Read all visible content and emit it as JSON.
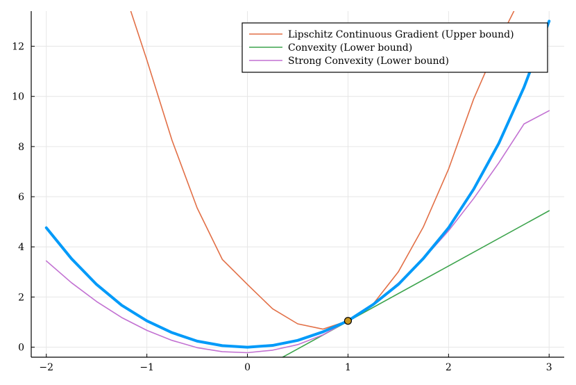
{
  "chart_data": {
    "type": "line",
    "title": "",
    "xlabel": "",
    "ylabel": "",
    "xlim": [
      -2.15,
      3.15
    ],
    "ylim": [
      -0.4,
      13.4
    ],
    "grid": true,
    "legend_position": "top-right",
    "x_ticks": [
      -2,
      -1,
      0,
      1,
      2,
      3
    ],
    "x_tick_labels": [
      "−2",
      "−1",
      "0",
      "1",
      "2",
      "3"
    ],
    "y_ticks": [
      0,
      2,
      4,
      6,
      8,
      10,
      12
    ],
    "y_tick_labels": [
      "0",
      "2",
      "4",
      "6",
      "8",
      "10",
      "12"
    ],
    "point": {
      "x": 1.0,
      "y": 1.05,
      "color": "#c8961e"
    },
    "series": [
      {
        "color": "#009af9",
        "x": [
          -2.0,
          -1.75,
          -1.5,
          -1.25,
          -1.0,
          -0.75,
          -0.5,
          -0.25,
          0.0,
          0.25,
          0.5,
          0.75,
          1.0,
          1.25,
          1.5,
          1.75,
          2.0,
          2.25,
          2.5,
          2.75,
          3.0
        ],
        "values": [
          4.76,
          3.53,
          2.5,
          1.67,
          1.05,
          0.58,
          0.24,
          0.06,
          0.0,
          0.07,
          0.27,
          0.61,
          1.05,
          1.7,
          2.5,
          3.54,
          4.76,
          6.3,
          8.13,
          10.36,
          13.0
        ]
      },
      {
        "name": "Lipschitz Continuous Gradient (Upper bound)",
        "color": "#e26f46",
        "x": [
          -1.16,
          -1.0,
          -0.75,
          -0.5,
          -0.25,
          0.0,
          0.25,
          0.5,
          0.75,
          1.0,
          1.25,
          1.5,
          1.75,
          2.0,
          2.25,
          2.5,
          2.65
        ],
        "values": [
          13.4,
          11.45,
          8.25,
          5.55,
          3.5,
          2.5,
          1.53,
          0.93,
          0.72,
          1.05,
          1.72,
          3.0,
          4.8,
          7.1,
          9.9,
          12.2,
          13.4
        ]
      },
      {
        "name": "Convexity (Lower bound)",
        "color": "#3da44d",
        "x": [
          0.35,
          3.0
        ],
        "values": [
          -0.4,
          5.44
        ]
      },
      {
        "name": "Strong Convexity (Lower bound)",
        "color": "#c271d2",
        "x": [
          -2.0,
          -1.75,
          -1.5,
          -1.25,
          -1.0,
          -0.75,
          -0.5,
          -0.25,
          0.0,
          0.25,
          0.5,
          0.75,
          1.0,
          1.25,
          1.5,
          1.75,
          2.0,
          2.25,
          2.5,
          2.75,
          3.0
        ],
        "values": [
          3.44,
          2.57,
          1.82,
          1.18,
          0.67,
          0.27,
          -0.02,
          -0.18,
          -0.22,
          -0.12,
          0.1,
          0.49,
          1.05,
          1.71,
          2.55,
          3.52,
          4.64,
          5.93,
          7.35,
          8.9,
          9.43
        ]
      }
    ]
  }
}
